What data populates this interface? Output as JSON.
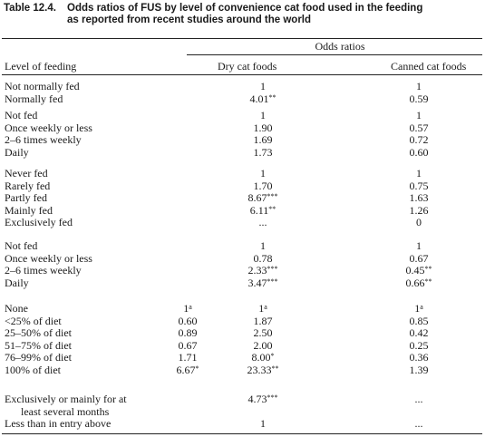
{
  "caption": {
    "number": "Table 12.4.",
    "line1": "Odds ratios of FUS by level of convenience cat food used in the feeding",
    "line2": "as reported from recent studies around the world"
  },
  "header": {
    "group": "Odds ratios",
    "col_level": "Level of feeding",
    "col_dry": "Dry cat foods",
    "col_canned": "Canned cat foods"
  },
  "groups": [
    {
      "rows": [
        {
          "label": "Not normally fed",
          "dry": "1",
          "canned": "1"
        },
        {
          "label": "Normally fed",
          "dry": "4.01**",
          "canned": "0.59"
        }
      ]
    },
    {
      "rows": [
        {
          "label": "Not fed",
          "dry": "1",
          "canned": "1"
        },
        {
          "label": "Once weekly or less",
          "dry": "1.90",
          "canned": "0.57"
        },
        {
          "label": "2–6 times weekly",
          "dry": "1.69",
          "canned": "0.72"
        },
        {
          "label": "Daily",
          "dry": "1.73",
          "canned": "0.60"
        }
      ]
    },
    {
      "rows": [
        {
          "label": "Never fed",
          "dry": "1",
          "canned": "1"
        },
        {
          "label": "Rarely fed",
          "dry": "1.70",
          "canned": "0.75"
        },
        {
          "label": "Partly fed",
          "dry": "8.67***",
          "canned": "1.63"
        },
        {
          "label": "Mainly fed",
          "dry": "6.11**",
          "canned": "1.26"
        },
        {
          "label": "Exclusively fed",
          "dry": "...",
          "canned": "0"
        }
      ]
    },
    {
      "rows": [
        {
          "label": "Not fed",
          "dry": "1",
          "canned": "1"
        },
        {
          "label": "Once weekly or less",
          "dry": "0.78",
          "canned": "0.67"
        },
        {
          "label": "2–6 times weekly",
          "dry": "2.33***",
          "canned": "0.45**"
        },
        {
          "label": "Daily",
          "dry": "3.47***",
          "canned": "0.66**"
        }
      ]
    },
    {
      "rows": [
        {
          "label": "None",
          "dry_a": "1ᵃ",
          "dry": "1ᵃ",
          "canned": "1ᵃ"
        },
        {
          "label": "<25% of diet",
          "dry_a": "0.60",
          "dry": "1.87",
          "canned": "0.85"
        },
        {
          "label": "25–50% of diet",
          "dry_a": "0.89",
          "dry": "2.50",
          "canned": "0.42"
        },
        {
          "label": "51–75% of diet",
          "dry_a": "0.67",
          "dry": "2.00",
          "canned": "0.25"
        },
        {
          "label": "76–99% of diet",
          "dry_a": "1.71",
          "dry": "8.00*",
          "canned": "0.36"
        },
        {
          "label": "100% of diet",
          "dry_a": "6.67*",
          "dry": "23.33**",
          "canned": "1.39"
        }
      ]
    },
    {
      "rows": [
        {
          "label": "Exclusively or mainly for at",
          "label2": "least several months",
          "dry": "4.73***",
          "canned": "..."
        },
        {
          "label": "Less than in entry above",
          "dry": "1",
          "canned": "..."
        }
      ]
    }
  ]
}
